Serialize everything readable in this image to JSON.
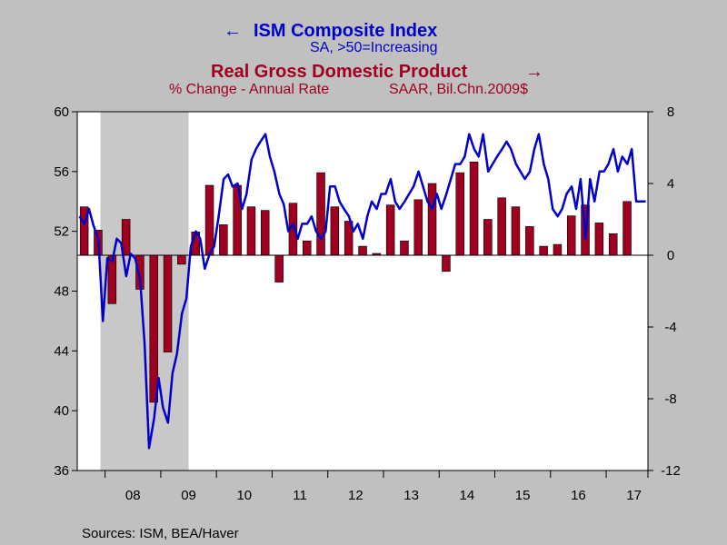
{
  "legend": {
    "ism_title": "ISM Composite Index",
    "ism_arrow": "←",
    "ism_subtitle": "SA, >50=Increasing",
    "gdp_title": "Real Gross Domestic Product",
    "gdp_arrow": "→",
    "gdp_subtitle_left": "% Change - Annual Rate",
    "gdp_subtitle_right": "SAAR, Bil.Chn.2009$"
  },
  "source": "Sources:  ISM, BEA/Haver",
  "colors": {
    "background": "#c0c0c0",
    "plot": "#ffffff",
    "ism_line": "#0000c8",
    "gdp_bar": "#a00020",
    "recession": "#c8c8c8",
    "legend_gdp_text": "#a00020",
    "legend_ism_text": "#0000c8"
  },
  "chart_data": {
    "type": "bar+line",
    "x_axis": {
      "range": [
        2007.5,
        2017.75
      ],
      "tick_labels": [
        "08",
        "09",
        "10",
        "11",
        "12",
        "13",
        "14",
        "15",
        "16",
        "17"
      ],
      "tick_years": [
        2008,
        2009,
        2010,
        2011,
        2012,
        2013,
        2014,
        2015,
        2016,
        2017
      ]
    },
    "left_axis": {
      "series": "ISM Composite Index",
      "ylim": [
        36,
        60
      ],
      "ticks": [
        36,
        40,
        44,
        48,
        52,
        56,
        60
      ]
    },
    "right_axis": {
      "series": "Real Gross Domestic Product",
      "ylim": [
        -12,
        8
      ],
      "ticks": [
        -12,
        -8,
        -4,
        0,
        4,
        8
      ]
    },
    "recession": {
      "start": 2007.917,
      "end": 2009.5
    },
    "gdp_bars": {
      "quarters": [
        "2007-Q3",
        "2007-Q4",
        "2008-Q1",
        "2008-Q2",
        "2008-Q3",
        "2008-Q4",
        "2009-Q1",
        "2009-Q2",
        "2009-Q3",
        "2009-Q4",
        "2010-Q1",
        "2010-Q2",
        "2010-Q3",
        "2010-Q4",
        "2011-Q1",
        "2011-Q2",
        "2011-Q3",
        "2011-Q4",
        "2012-Q1",
        "2012-Q2",
        "2012-Q3",
        "2012-Q4",
        "2013-Q1",
        "2013-Q2",
        "2013-Q3",
        "2013-Q4",
        "2014-Q1",
        "2014-Q2",
        "2014-Q3",
        "2014-Q4",
        "2015-Q1",
        "2015-Q2",
        "2015-Q3",
        "2015-Q4",
        "2016-Q1",
        "2016-Q2",
        "2016-Q3",
        "2016-Q4",
        "2017-Q1",
        "2017-Q2"
      ],
      "values": [
        2.7,
        1.4,
        -2.7,
        2.0,
        -1.9,
        -8.2,
        -5.4,
        -0.5,
        1.3,
        3.9,
        1.7,
        3.9,
        2.7,
        2.5,
        -1.5,
        2.9,
        0.8,
        4.6,
        2.7,
        1.9,
        0.5,
        0.1,
        2.8,
        0.8,
        3.1,
        4.0,
        -0.9,
        4.6,
        5.2,
        2.0,
        3.2,
        2.7,
        1.6,
        0.5,
        0.6,
        2.2,
        2.8,
        1.8,
        1.2,
        3.0
      ]
    },
    "ism_line": {
      "x": [
        2007.54,
        2007.63,
        2007.71,
        2007.79,
        2007.88,
        2007.96,
        2008.04,
        2008.13,
        2008.21,
        2008.29,
        2008.38,
        2008.46,
        2008.54,
        2008.63,
        2008.71,
        2008.79,
        2008.88,
        2008.96,
        2009.04,
        2009.13,
        2009.21,
        2009.29,
        2009.38,
        2009.46,
        2009.54,
        2009.63,
        2009.71,
        2009.79,
        2009.88,
        2009.96,
        2010.04,
        2010.13,
        2010.21,
        2010.29,
        2010.38,
        2010.46,
        2010.54,
        2010.63,
        2010.71,
        2010.79,
        2010.88,
        2010.96,
        2011.04,
        2011.13,
        2011.21,
        2011.29,
        2011.38,
        2011.46,
        2011.54,
        2011.63,
        2011.71,
        2011.79,
        2011.88,
        2011.96,
        2012.04,
        2012.13,
        2012.21,
        2012.29,
        2012.38,
        2012.46,
        2012.54,
        2012.63,
        2012.71,
        2012.79,
        2012.88,
        2012.96,
        2013.04,
        2013.13,
        2013.21,
        2013.29,
        2013.38,
        2013.46,
        2013.54,
        2013.63,
        2013.71,
        2013.79,
        2013.88,
        2013.96,
        2014.04,
        2014.13,
        2014.21,
        2014.29,
        2014.38,
        2014.46,
        2014.54,
        2014.63,
        2014.71,
        2014.79,
        2014.88,
        2014.96,
        2015.04,
        2015.13,
        2015.21,
        2015.29,
        2015.38,
        2015.46,
        2015.54,
        2015.63,
        2015.71,
        2015.79,
        2015.88,
        2015.96,
        2016.04,
        2016.13,
        2016.21,
        2016.29,
        2016.38,
        2016.46,
        2016.54,
        2016.63,
        2016.71,
        2016.79,
        2016.88,
        2016.96,
        2017.04,
        2017.13,
        2017.21,
        2017.29,
        2017.38,
        2017.46,
        2017.54,
        2017.63,
        2017.71
      ],
      "y": [
        53.0,
        52.5,
        53.5,
        52.4,
        51.5,
        46.0,
        50.2,
        50.0,
        51.5,
        51.2,
        49.0,
        50.5,
        50.2,
        48.8,
        44.5,
        37.5,
        39.5,
        42.2,
        40.2,
        39.2,
        42.5,
        43.8,
        46.5,
        47.5,
        51.0,
        52.0,
        51.5,
        49.5,
        50.5,
        51.0,
        53.0,
        55.5,
        55.8,
        55.0,
        55.2,
        53.5,
        54.5,
        56.8,
        57.5,
        58.0,
        58.5,
        57.0,
        56.0,
        54.5,
        53.8,
        52.0,
        52.5,
        51.5,
        52.5,
        52.5,
        53.0,
        52.0,
        51.5,
        52.0,
        55.0,
        55.0,
        54.0,
        53.5,
        53.0,
        52.0,
        52.5,
        51.5,
        53.0,
        54.0,
        53.5,
        54.5,
        54.5,
        55.5,
        54.0,
        53.5,
        54.0,
        54.5,
        55.0,
        56.0,
        55.0,
        54.0,
        53.5,
        54.5,
        53.5,
        54.5,
        55.5,
        56.5,
        56.5,
        57.0,
        58.5,
        57.5,
        57.0,
        58.5,
        56.0,
        56.5,
        57.0,
        57.5,
        58.0,
        57.5,
        56.5,
        56.0,
        55.5,
        56.0,
        57.5,
        58.5,
        56.5,
        55.5,
        53.5,
        53.0,
        53.5,
        54.5,
        55.0,
        53.5,
        55.5,
        51.5,
        55.5,
        54.0,
        56.0,
        56.0,
        56.5,
        57.5,
        56.0,
        57.0,
        56.5,
        57.5,
        54.0,
        54.0,
        54.0
      ]
    }
  }
}
